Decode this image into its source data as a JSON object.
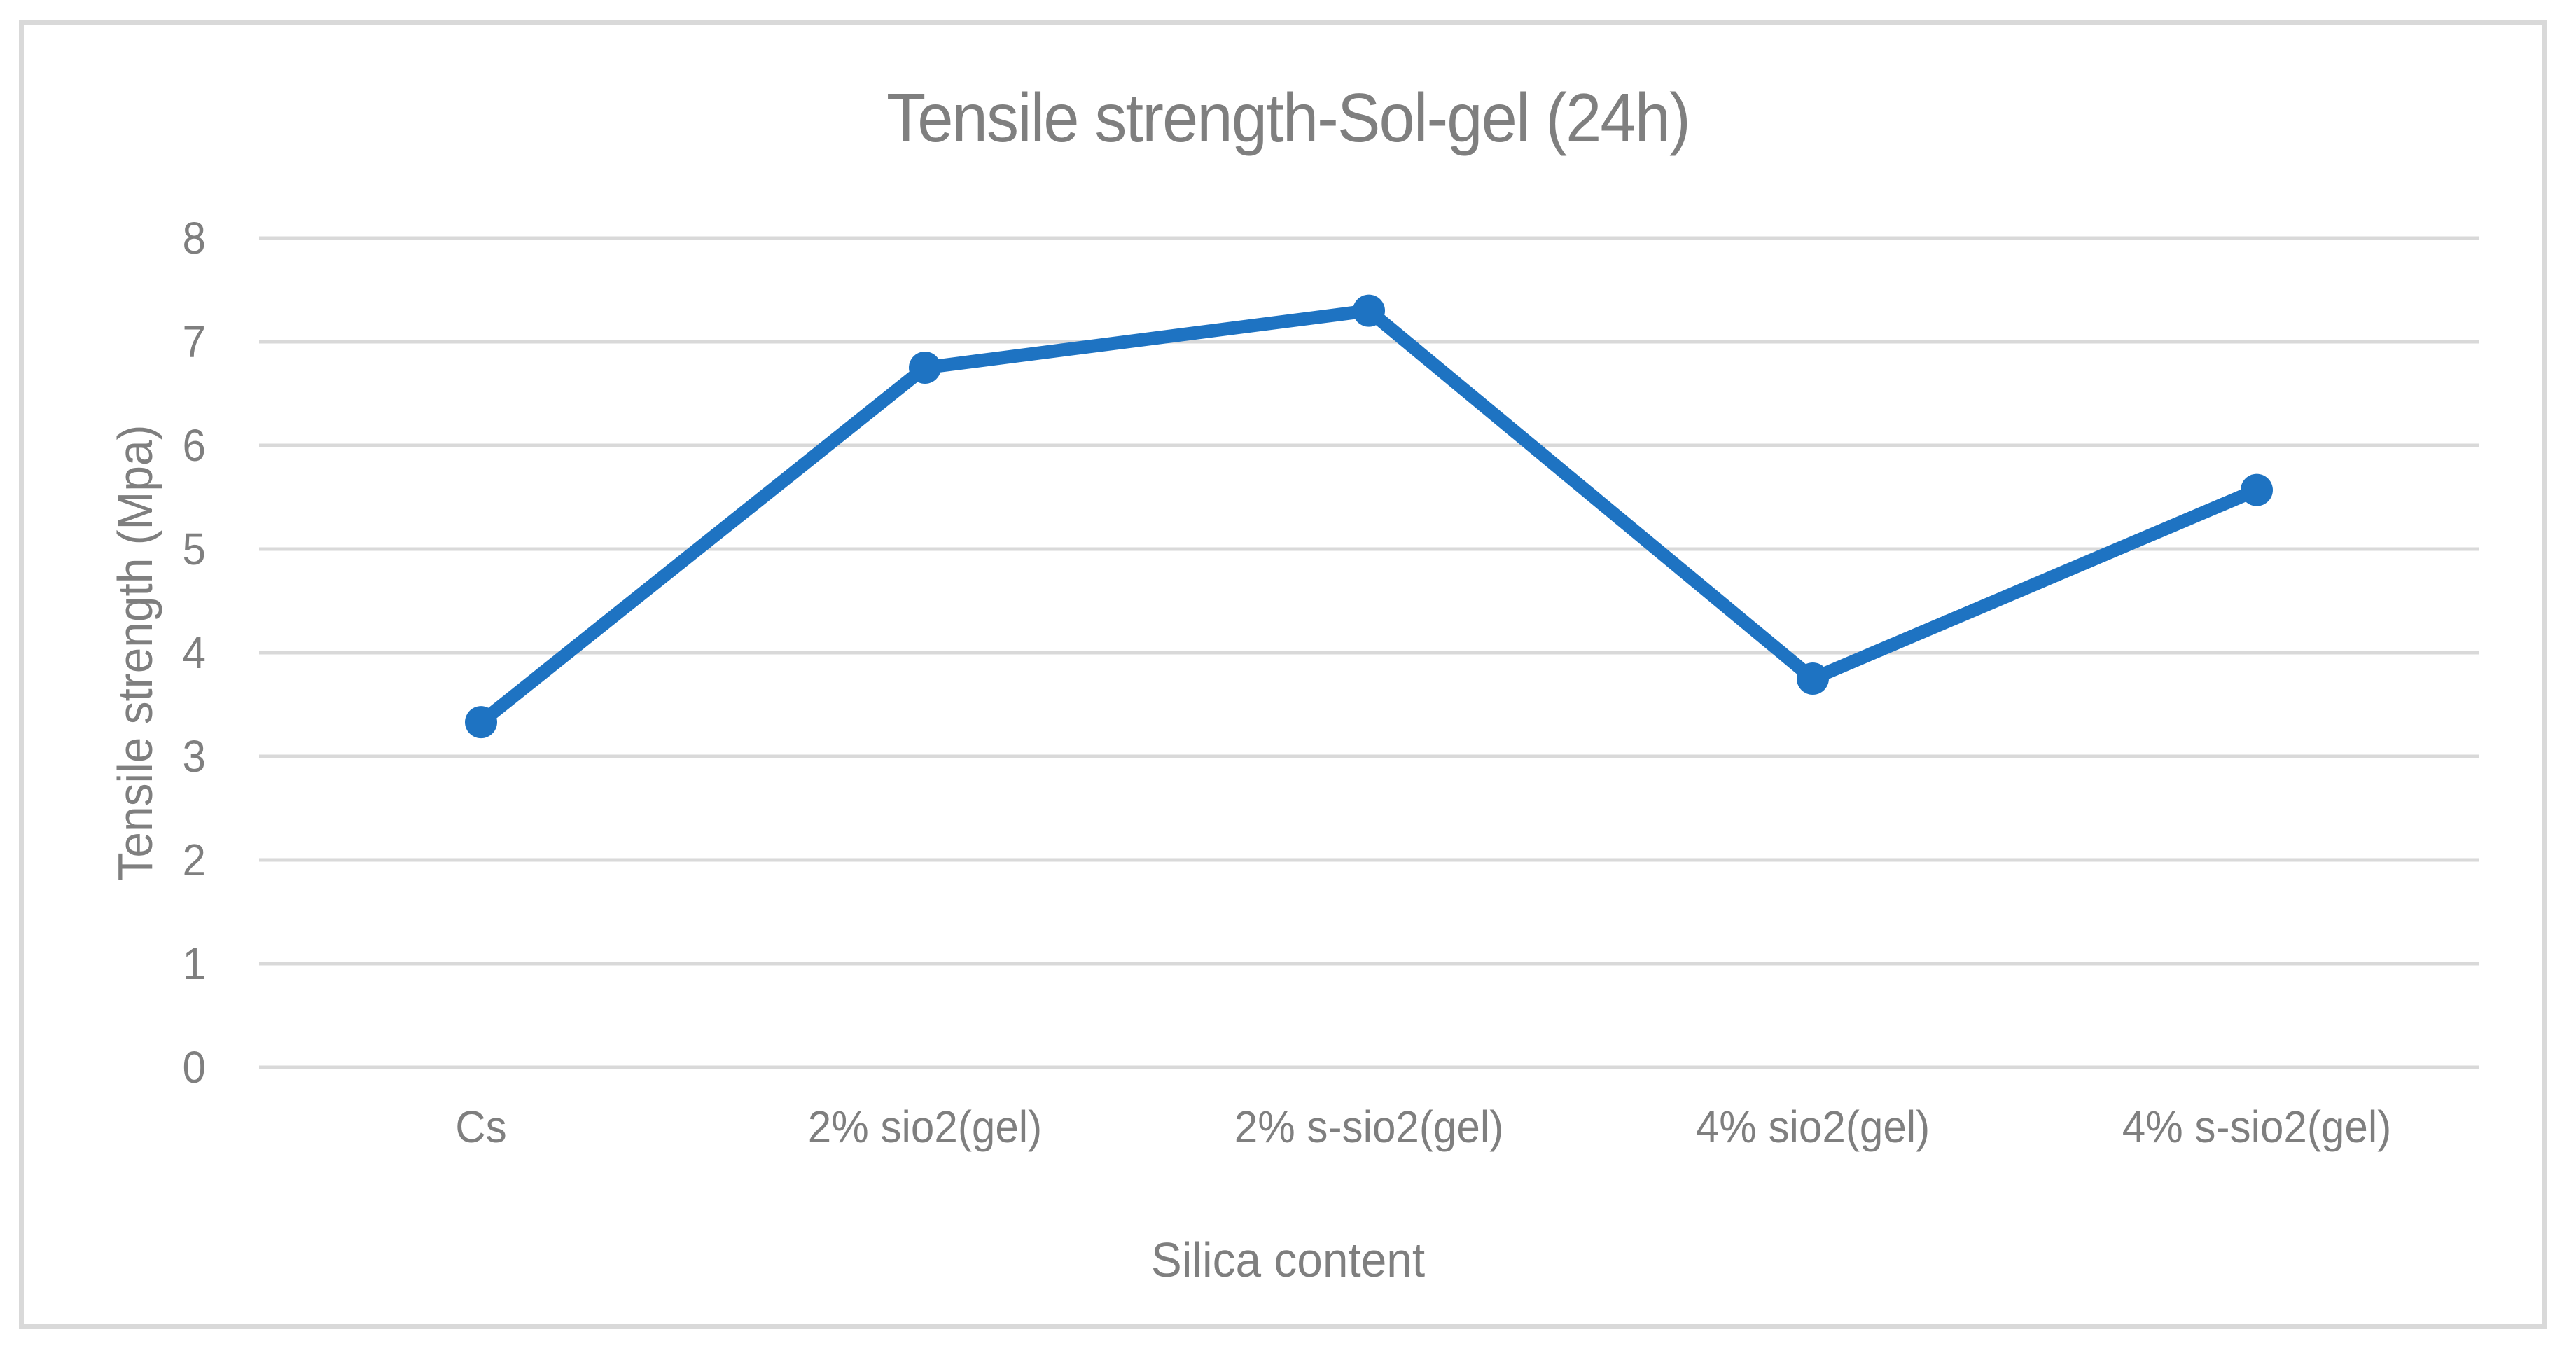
{
  "chart_data": {
    "type": "line",
    "title": "Tensile strength-Sol-gel (24h)",
    "xlabel": "Silica content",
    "ylabel": "Tensile strength (Mpa)",
    "categories": [
      "Cs",
      "2% sio2(gel)",
      "2% s-sio2(gel)",
      "4% sio2(gel)",
      "4% s-sio2(gel)"
    ],
    "series": [
      {
        "name": "Tensile strength (Mpa)",
        "values": [
          3.33,
          6.75,
          7.3,
          3.75,
          5.57
        ]
      }
    ],
    "ylim": [
      0,
      8
    ],
    "yticks": [
      0,
      1,
      2,
      3,
      4,
      5,
      6,
      7,
      8
    ],
    "grid": "horizontal",
    "legend_position": "none",
    "marker": "circle",
    "colors": {
      "line": "#1E73C2",
      "marker": "#1E73C2",
      "gridline": "#D9D9D9",
      "frame_border": "#D9D9D9",
      "text": "#7F7F7F",
      "background": "#FFFFFF"
    }
  }
}
